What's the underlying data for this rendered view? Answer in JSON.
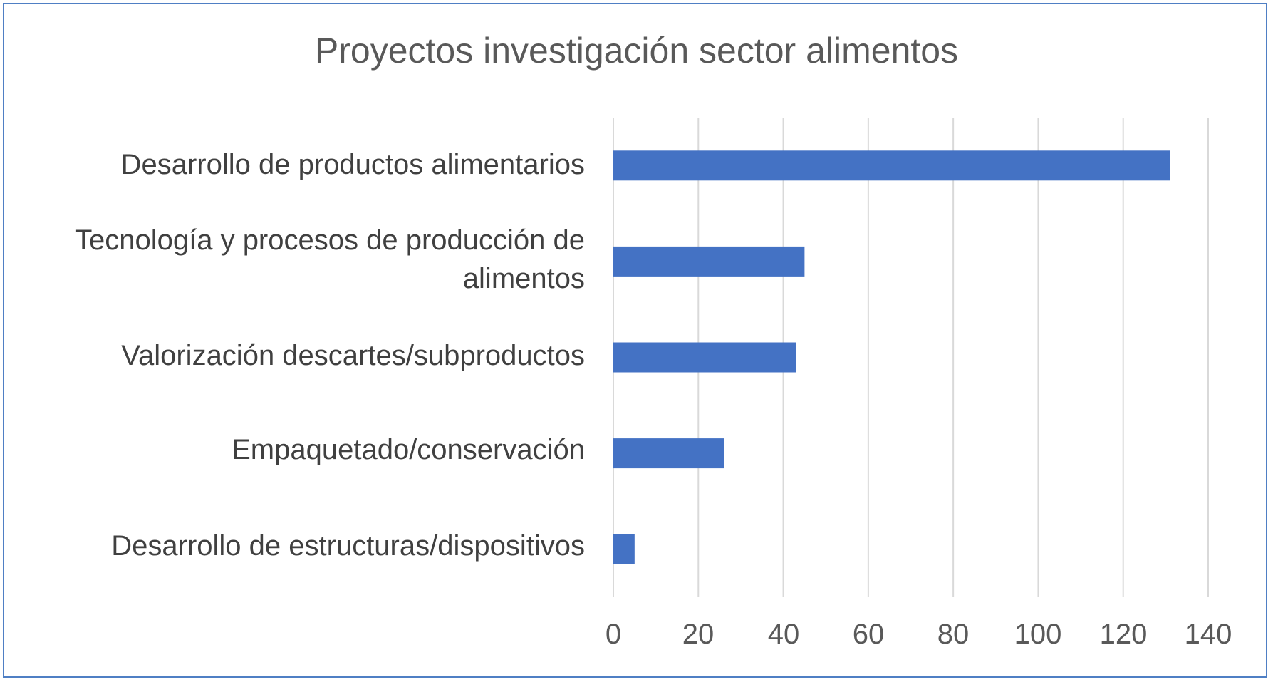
{
  "chart_data": {
    "type": "bar",
    "orientation": "horizontal",
    "title": "Proyectos investigación sector alimentos",
    "categories": [
      "Desarrollo de productos alimentarios",
      "Tecnología y procesos de producción de alimentos",
      "Valorización descartes/subproductos",
      "Empaquetado/conservación",
      "Desarrollo de estructuras/dispositivos"
    ],
    "values": [
      131,
      45,
      43,
      26,
      5
    ],
    "xlim": [
      0,
      140
    ],
    "x_ticks": [
      "0",
      "20",
      "40",
      "60",
      "80",
      "100",
      "120",
      "140"
    ],
    "xlabel": "",
    "ylabel": "",
    "grid": "vertical",
    "bar_color": "#4472c4",
    "grid_color": "#d9d9d9"
  }
}
